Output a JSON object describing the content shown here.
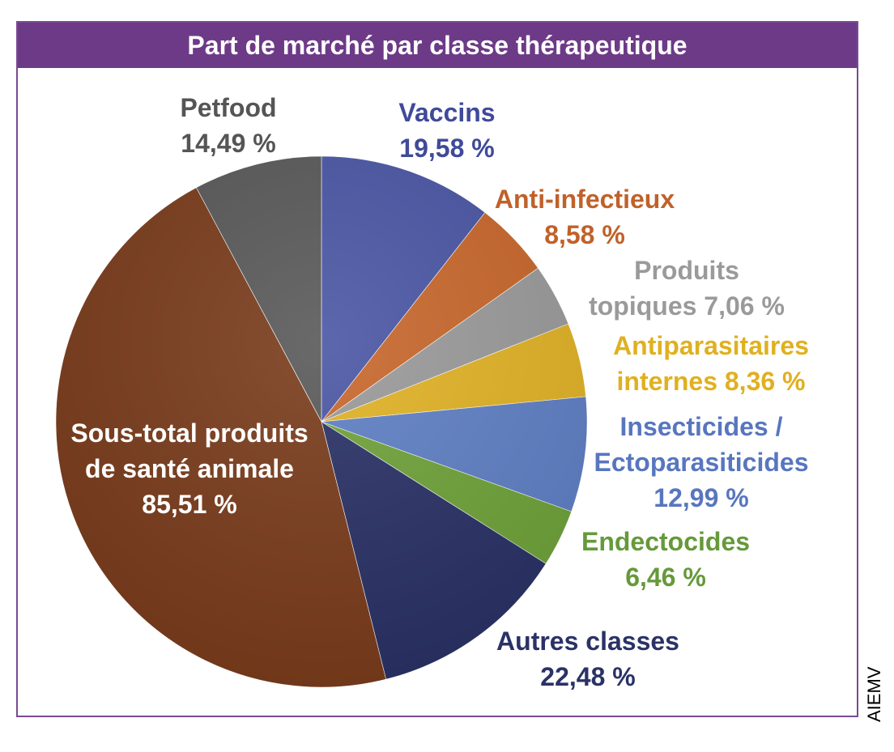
{
  "chart_data": {
    "type": "pie",
    "title": "Part de marché par classe thérapeutique",
    "slices": [
      {
        "label": "Vaccins",
        "value": 19.58,
        "value_text": "19,58 %",
        "color": "#4a56a4",
        "text_color": "#3f4a9a"
      },
      {
        "label": "Anti-infectieux",
        "value": 8.58,
        "value_text": "8,58 %",
        "color": "#c8672c",
        "text_color": "#c0612a"
      },
      {
        "label": "Produits topiques",
        "value": 7.06,
        "value_text": "7,06 %",
        "color": "#9a9a9a",
        "text_color": "#9a9a9a"
      },
      {
        "label": "Antiparasitaires internes",
        "value": 8.36,
        "value_text": "8,36 %",
        "color": "#e1b226",
        "text_color": "#e0b020"
      },
      {
        "label": "Insecticides / Ectoparasiticides",
        "value": 12.99,
        "value_text": "12,99 %",
        "color": "#5f7fc4",
        "text_color": "#5876bf"
      },
      {
        "label": "Endectocides",
        "value": 6.46,
        "value_text": "6,46 %",
        "color": "#6fa23a",
        "text_color": "#66993a"
      },
      {
        "label": "Autres classes",
        "value": 22.48,
        "value_text": "22,48 %",
        "color": "#2a3266",
        "text_color": "#2a3266"
      },
      {
        "label": "Sous-total produits de santé animale",
        "value": 85.51,
        "value_text": "85,51 %",
        "color": "#7a3c1c",
        "text_color": "#ffffff"
      },
      {
        "label": "Petfood",
        "value": 14.49,
        "value_text": "14,49 %",
        "color": "#595959",
        "text_color": "#555555"
      }
    ],
    "start_angle_deg": 0,
    "direction": "clockwise"
  },
  "source": "AIEMV"
}
